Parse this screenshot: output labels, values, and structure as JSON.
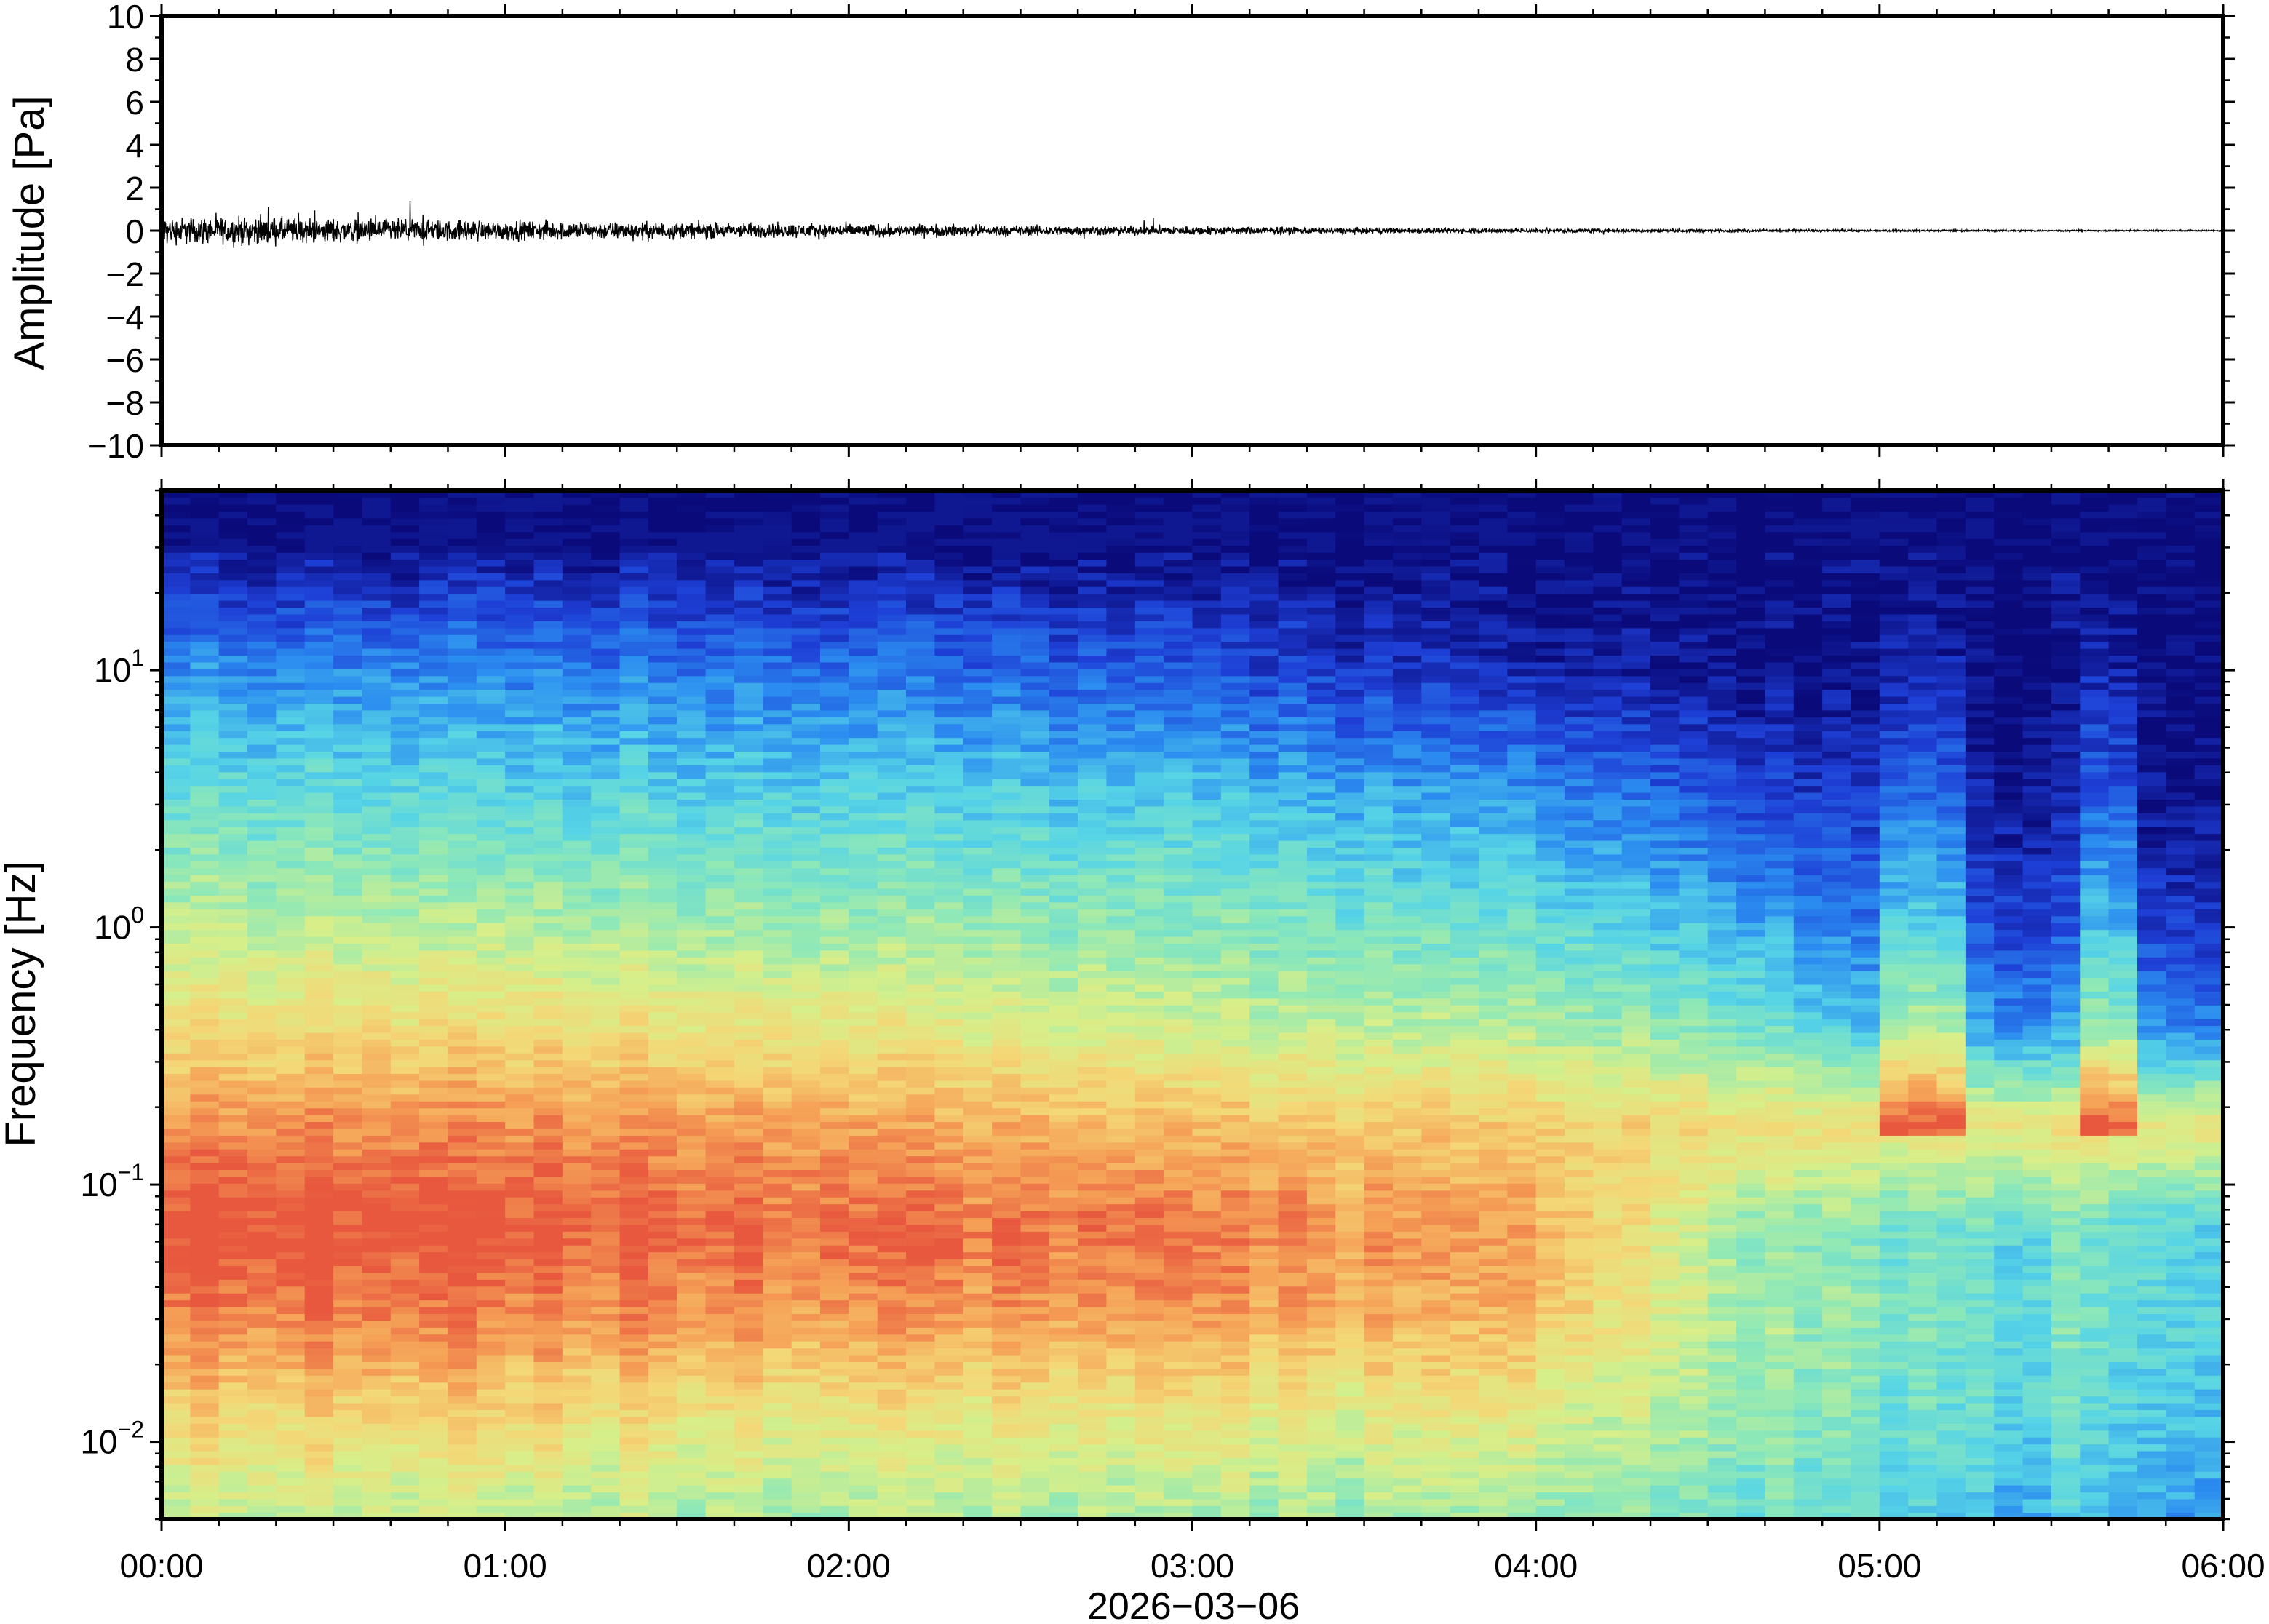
{
  "chart_data": [
    {
      "type": "line",
      "ylabel": "Amplitude [Pa]",
      "ylim": [
        -10,
        10
      ],
      "y_ticks": [
        "10",
        "8",
        "6",
        "4",
        "2",
        "0",
        "−2",
        "−4",
        "−6",
        "−8",
        "−10"
      ],
      "x_range_hours": [
        0,
        6
      ],
      "series": [
        {
          "envelope_time_hours": [
            0.0,
            0.25,
            0.5,
            0.75,
            1.0,
            1.25,
            1.5,
            1.75,
            2.0,
            2.25,
            2.5,
            2.75,
            3.0,
            3.25,
            3.5,
            3.75,
            4.0,
            4.25,
            4.5,
            4.75,
            5.0,
            5.25,
            5.5,
            5.75,
            6.0
          ],
          "envelope_amplitude_pa": [
            0.9,
            0.9,
            0.8,
            0.75,
            0.65,
            0.6,
            0.55,
            0.5,
            0.45,
            0.4,
            0.35,
            0.32,
            0.3,
            0.25,
            0.2,
            0.18,
            0.15,
            0.12,
            0.1,
            0.08,
            0.07,
            0.06,
            0.05,
            0.05,
            0.05
          ],
          "color": "#000000"
        }
      ]
    },
    {
      "type": "heatmap",
      "ylabel": "Frequency [Hz]",
      "y_scale": "log",
      "ylim_hz": [
        0.005,
        50
      ],
      "y_ticks": [
        {
          "base": "10",
          "exp": "1"
        },
        {
          "base": "10",
          "exp": "0"
        },
        {
          "base": "10",
          "exp": "−1"
        },
        {
          "base": "10",
          "exp": "−2"
        }
      ],
      "xlabel": "2026−03−06",
      "x_ticks": [
        "00:00",
        "01:00",
        "02:00",
        "03:00",
        "04:00",
        "05:00",
        "06:00"
      ],
      "x_range_hours": [
        0,
        6
      ],
      "colormap": "jet (blue = low power, red = high power)",
      "colormap_stops": [
        "#0a0a7a",
        "#1e3fd6",
        "#2b8cf0",
        "#56d4e6",
        "#8de8b8",
        "#d6ef8a",
        "#f4d776",
        "#f5a257",
        "#e8583e"
      ],
      "time_columns_hours": [
        0,
        1,
        2,
        3,
        4,
        4.6,
        5,
        5.5,
        6
      ],
      "power_profiles": [
        {
          "time_hours": 0,
          "levels": [
            5,
            6,
            7.6,
            8.5,
            7.3,
            5.8,
            4.8,
            3.6,
            2.2,
            0.5,
            0
          ]
        },
        {
          "time_hours": 1,
          "levels": [
            4.8,
            6,
            7.4,
            8.2,
            7.3,
            5.9,
            4.6,
            3.3,
            2,
            0.6,
            0
          ]
        },
        {
          "time_hours": 2,
          "levels": [
            4.6,
            5.6,
            7.2,
            8,
            7,
            5.6,
            4.4,
            3.2,
            1.8,
            0.5,
            0
          ]
        },
        {
          "time_hours": 3,
          "levels": [
            4.2,
            5.2,
            6.8,
            7.4,
            6.4,
            4.8,
            3.9,
            2.8,
            1.2,
            0.2,
            0
          ]
        },
        {
          "time_hours": 4,
          "levels": [
            4.2,
            5.2,
            6.4,
            6.8,
            6.2,
            4.5,
            3.4,
            2.2,
            0.5,
            0,
            0
          ]
        },
        {
          "time_hours": 4.6,
          "levels": [
            3.6,
            4.2,
            4.4,
            4.3,
            5.8,
            3.8,
            2.6,
            1.2,
            0.2,
            0,
            0
          ]
        },
        {
          "time_hours": 5,
          "levels": [
            3.0,
            3.6,
            3.8,
            3.6,
            5.6,
            2.6,
            1.5,
            0.7,
            0,
            0,
            0
          ]
        },
        {
          "time_hours": 5.5,
          "levels": [
            2.6,
            3.2,
            3.5,
            3.4,
            5.6,
            2.2,
            1.1,
            0.4,
            0,
            0,
            0
          ]
        },
        {
          "time_hours": 6,
          "levels": [
            2.4,
            3.0,
            3.3,
            3.2,
            5.6,
            2.0,
            1.0,
            0.3,
            0,
            0,
            0
          ]
        }
      ],
      "profile_frequencies_hz": [
        0.005,
        0.012,
        0.03,
        0.065,
        0.17,
        0.4,
        1,
        3,
        10,
        25,
        50
      ]
    }
  ]
}
